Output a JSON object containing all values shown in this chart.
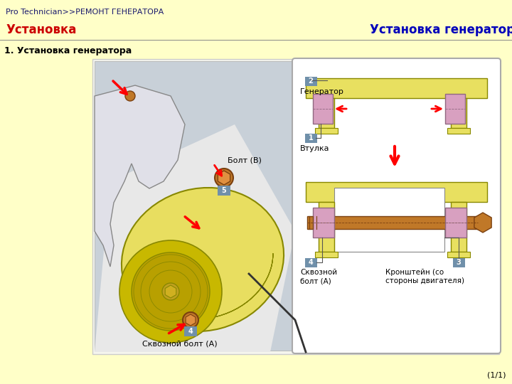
{
  "header_bg": "#add8e6",
  "header_text1": "Pro Technician>>РЕМОНТ ГЕНЕРАТОРА",
  "header_text1_color": "#1a1a6e",
  "header_text1_fontsize": 8,
  "header_text2": "Установка",
  "header_text2_color": "#cc0000",
  "header_text2_fontsize": 12,
  "header_text3": "Установка генератора",
  "header_text3_color": "#0000bb",
  "header_text3_fontsize": 12,
  "body_bg": "#ffffc8",
  "section_title": "1. Установка генератора",
  "section_title_color": "#000000",
  "section_title_fontsize": 9,
  "page_num": "(1/1)",
  "page_num_color": "#000000",
  "page_num_fontsize": 8,
  "label_bolt_b": "Болт (B)",
  "label_thru_a": "Сквозной болт (А)",
  "label_generator": "Генератор",
  "label_bushing": "Втулка",
  "label_thru_a2": "Сквозной\nболт (А)",
  "label_bracket": "Кронштейн (со\nстороны двигателя)",
  "num_bg": "#7090aa",
  "num_color": "#ffffff",
  "photo_bg": "#c8d0d8",
  "gen_color": "#e8de60",
  "gen_dark": "#c8b800",
  "gen_line": "#888800",
  "bolt_color": "#c07828",
  "bolt_dark": "#7a4010",
  "diag_bg": "#ffffff",
  "diag_border": "#aaaaaa",
  "bracket_color": "#e8e060",
  "bracket_edge": "#888800",
  "bushing_color": "#d8a0c0",
  "bushing_edge": "#906880"
}
